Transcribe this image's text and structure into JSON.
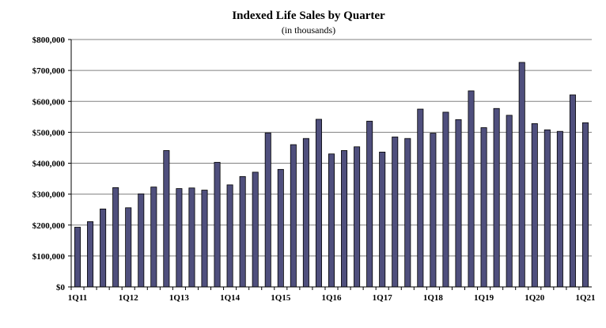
{
  "chart_data": {
    "type": "bar",
    "title": "Indexed Life Sales by Quarter",
    "subtitle": "(in thousands)",
    "xlabel": "",
    "ylabel": "",
    "ylim": [
      0,
      800000
    ],
    "yticks": [
      0,
      100000,
      200000,
      300000,
      400000,
      500000,
      600000,
      700000,
      800000
    ],
    "ytick_labels": [
      "$0",
      "$100,000",
      "$200,000",
      "$300,000",
      "$400,000",
      "$500,000",
      "$600,000",
      "$700,000",
      "$800,000"
    ],
    "grid": true,
    "legend": "none",
    "bar_color": "#4f4f7d",
    "categories": [
      "1Q11",
      "2Q11",
      "3Q11",
      "4Q11",
      "1Q12",
      "2Q12",
      "3Q12",
      "4Q12",
      "1Q13",
      "2Q13",
      "3Q13",
      "4Q13",
      "1Q14",
      "2Q14",
      "3Q14",
      "4Q14",
      "1Q15",
      "2Q15",
      "3Q15",
      "4Q15",
      "1Q16",
      "2Q16",
      "3Q16",
      "4Q16",
      "1Q17",
      "2Q17",
      "3Q17",
      "4Q17",
      "1Q18",
      "2Q18",
      "3Q18",
      "4Q18",
      "1Q19",
      "2Q19",
      "3Q19",
      "4Q19",
      "1Q20",
      "2Q20",
      "3Q20",
      "4Q20",
      "1Q21"
    ],
    "visible_x_labels": [
      "1Q11",
      "1Q12",
      "1Q13",
      "1Q14",
      "1Q15",
      "1Q16",
      "1Q17",
      "1Q18",
      "1Q19",
      "1Q20",
      "1Q21"
    ],
    "values": [
      193000,
      211000,
      252000,
      321000,
      256000,
      301000,
      323000,
      441000,
      318000,
      320000,
      313000,
      403000,
      330000,
      357000,
      371000,
      498000,
      380000,
      460000,
      480000,
      542000,
      430000,
      441000,
      453000,
      536000,
      436000,
      485000,
      480000,
      575000,
      497000,
      565000,
      541000,
      634000,
      515000,
      577000,
      555000,
      726000,
      528000,
      508000,
      503000,
      621000,
      531000
    ]
  }
}
